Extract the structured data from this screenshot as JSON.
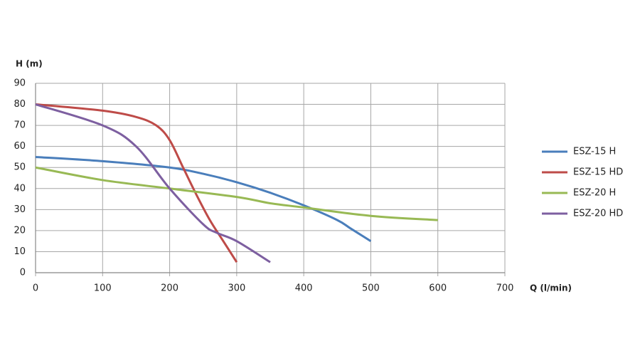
{
  "chart_data": {
    "type": "line",
    "y_label": "H (m)",
    "x_label": "Q (l/min)",
    "xlim": [
      0,
      700
    ],
    "xticks": [
      0,
      100,
      200,
      300,
      400,
      500,
      600,
      700
    ],
    "ylim": [
      0,
      90
    ],
    "yticks": [
      0,
      10,
      20,
      30,
      40,
      50,
      60,
      70,
      80,
      90
    ],
    "grid": true,
    "legend": "right",
    "series": [
      {
        "name": "ESZ-15 H",
        "color": "#4a7ebb",
        "x": [
          0,
          100,
          200,
          250,
          300,
          350,
          400,
          450,
          470,
          500
        ],
        "values": [
          55,
          53,
          50,
          47,
          43,
          38,
          32,
          25,
          21,
          15
        ]
      },
      {
        "name": "ESZ-15 HD",
        "color": "#be4b48",
        "x": [
          0,
          100,
          150,
          180,
          200,
          220,
          240,
          260,
          280,
          300
        ],
        "values": [
          80,
          77,
          74,
          70,
          63,
          50,
          37,
          25,
          15,
          5
        ]
      },
      {
        "name": "ESZ-20 H",
        "color": "#98b954",
        "x": [
          0,
          100,
          200,
          300,
          350,
          400,
          500,
          600
        ],
        "values": [
          50,
          44,
          40,
          36,
          33,
          31,
          27,
          25
        ]
      },
      {
        "name": "ESZ-20 HD",
        "color": "#7d5fa0",
        "x": [
          0,
          100,
          150,
          200,
          250,
          270,
          300,
          350
        ],
        "values": [
          80,
          70,
          60,
          40,
          23,
          19,
          15,
          5
        ]
      }
    ]
  }
}
